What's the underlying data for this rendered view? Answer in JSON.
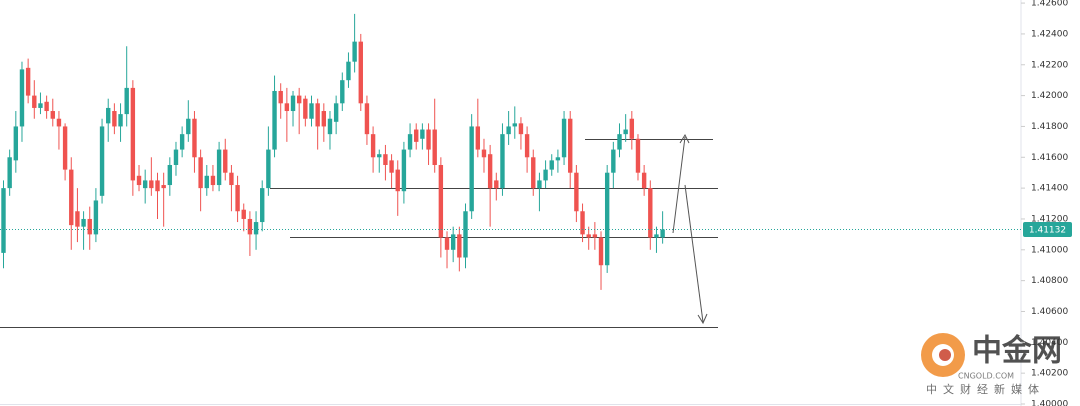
{
  "chart_data": {
    "type": "candlestick",
    "up_color": "#26a69a",
    "down_color": "#ef5350",
    "ylim": [
      1.4,
      1.4262
    ],
    "yticks": [
      {
        "value": 1.426,
        "label": "1.42600"
      },
      {
        "value": 1.424,
        "label": "1.42400"
      },
      {
        "value": 1.422,
        "label": "1.42200"
      },
      {
        "value": 1.42,
        "label": "1.42000"
      },
      {
        "value": 1.418,
        "label": "1.41800"
      },
      {
        "value": 1.416,
        "label": "1.41600"
      },
      {
        "value": 1.414,
        "label": "1.41400"
      },
      {
        "value": 1.412,
        "label": "1.41200"
      },
      {
        "value": 1.41,
        "label": "1.41000"
      },
      {
        "value": 1.408,
        "label": "1.40800"
      },
      {
        "value": 1.406,
        "label": "1.40600"
      },
      {
        "value": 1.404,
        "label": "1.40400"
      },
      {
        "value": 1.402,
        "label": "1.40200"
      },
      {
        "value": 1.4,
        "label": "1.40000"
      }
    ],
    "last_price_label": "1.41132",
    "levels": [
      1.4172,
      1.414,
      1.4108,
      1.405
    ],
    "ohlc": [
      [
        1.4098,
        1.4145,
        1.4088,
        1.414
      ],
      [
        1.414,
        1.4165,
        1.4135,
        1.416
      ],
      [
        1.4158,
        1.419,
        1.415,
        1.418
      ],
      [
        1.418,
        1.4222,
        1.417,
        1.4217
      ],
      [
        1.4218,
        1.4224,
        1.4195,
        1.42
      ],
      [
        1.42,
        1.421,
        1.4185,
        1.4192
      ],
      [
        1.4192,
        1.4202,
        1.4188,
        1.4195
      ],
      [
        1.4196,
        1.42,
        1.4185,
        1.419
      ],
      [
        1.419,
        1.4198,
        1.418,
        1.4185
      ],
      [
        1.4185,
        1.419,
        1.4165,
        1.418
      ],
      [
        1.418,
        1.4182,
        1.4145,
        1.4152
      ],
      [
        1.4152,
        1.416,
        1.41,
        1.4116
      ],
      [
        1.4125,
        1.414,
        1.4105,
        1.4115
      ],
      [
        1.4115,
        1.4125,
        1.41,
        1.412
      ],
      [
        1.412,
        1.4128,
        1.41,
        1.411
      ],
      [
        1.411,
        1.414,
        1.4105,
        1.4132
      ],
      [
        1.4135,
        1.4185,
        1.413,
        1.418
      ],
      [
        1.4182,
        1.4198,
        1.417,
        1.4192
      ],
      [
        1.419,
        1.4195,
        1.4175,
        1.418
      ],
      [
        1.418,
        1.4195,
        1.417,
        1.4188
      ],
      [
        1.4188,
        1.4232,
        1.418,
        1.4205
      ],
      [
        1.4205,
        1.421,
        1.4135,
        1.4145
      ],
      [
        1.4148,
        1.4155,
        1.4138,
        1.4142
      ],
      [
        1.414,
        1.4152,
        1.413,
        1.4145
      ],
      [
        1.4145,
        1.416,
        1.4135,
        1.414
      ],
      [
        1.4145,
        1.415,
        1.412,
        1.4138
      ],
      [
        1.4142,
        1.415,
        1.4115,
        1.414
      ],
      [
        1.4142,
        1.416,
        1.4135,
        1.4155
      ],
      [
        1.4155,
        1.417,
        1.4148,
        1.4165
      ],
      [
        1.4165,
        1.418,
        1.416,
        1.4175
      ],
      [
        1.4175,
        1.4197,
        1.417,
        1.4185
      ],
      [
        1.4185,
        1.419,
        1.415,
        1.416
      ],
      [
        1.416,
        1.4165,
        1.4125,
        1.414
      ],
      [
        1.414,
        1.4155,
        1.4135,
        1.4148
      ],
      [
        1.4148,
        1.4155,
        1.4138,
        1.4142
      ],
      [
        1.4142,
        1.417,
        1.4138,
        1.4165
      ],
      [
        1.4165,
        1.4172,
        1.4145,
        1.415
      ],
      [
        1.415,
        1.4155,
        1.4125,
        1.4142
      ],
      [
        1.4142,
        1.4148,
        1.4118,
        1.4125
      ],
      [
        1.4126,
        1.413,
        1.4112,
        1.412
      ],
      [
        1.412,
        1.4125,
        1.4096,
        1.411
      ],
      [
        1.411,
        1.4125,
        1.41,
        1.4118
      ],
      [
        1.4118,
        1.4145,
        1.4112,
        1.414
      ],
      [
        1.414,
        1.418,
        1.4135,
        1.4165
      ],
      [
        1.4165,
        1.4213,
        1.416,
        1.4203
      ],
      [
        1.4203,
        1.4208,
        1.4185,
        1.4195
      ],
      [
        1.4195,
        1.4205,
        1.417,
        1.419
      ],
      [
        1.419,
        1.4203,
        1.418,
        1.42
      ],
      [
        1.42,
        1.4205,
        1.4175,
        1.4195
      ],
      [
        1.4198,
        1.42,
        1.418,
        1.4185
      ],
      [
        1.4185,
        1.42,
        1.418,
        1.4195
      ],
      [
        1.4195,
        1.4198,
        1.4165,
        1.418
      ],
      [
        1.419,
        1.4195,
        1.417,
        1.418
      ],
      [
        1.4175,
        1.419,
        1.4165,
        1.4185
      ],
      [
        1.4183,
        1.42,
        1.4175,
        1.4195
      ],
      [
        1.4195,
        1.4215,
        1.419,
        1.421
      ],
      [
        1.421,
        1.4228,
        1.4205,
        1.4222
      ],
      [
        1.4222,
        1.4253,
        1.4215,
        1.4235
      ],
      [
        1.4235,
        1.424,
        1.419,
        1.4195
      ],
      [
        1.4195,
        1.42,
        1.4168,
        1.4175
      ],
      [
        1.4175,
        1.418,
        1.415,
        1.416
      ],
      [
        1.416,
        1.4165,
        1.415,
        1.4162
      ],
      [
        1.4162,
        1.4168,
        1.4145,
        1.4155
      ],
      [
        1.4158,
        1.4162,
        1.414,
        1.415
      ],
      [
        1.4152,
        1.4158,
        1.4122,
        1.4138
      ],
      [
        1.4138,
        1.417,
        1.413,
        1.4165
      ],
      [
        1.4165,
        1.4182,
        1.416,
        1.4175
      ],
      [
        1.4178,
        1.4182,
        1.4165,
        1.417
      ],
      [
        1.4172,
        1.4182,
        1.4165,
        1.4178
      ],
      [
        1.4178,
        1.4182,
        1.4155,
        1.4165
      ],
      [
        1.4178,
        1.4198,
        1.415,
        1.4155
      ],
      [
        1.4155,
        1.416,
        1.4095,
        1.4108
      ],
      [
        1.4108,
        1.4112,
        1.4088,
        1.41
      ],
      [
        1.41,
        1.4115,
        1.4092,
        1.411
      ],
      [
        1.411,
        1.4115,
        1.4086,
        1.4095
      ],
      [
        1.4095,
        1.413,
        1.4088,
        1.4125
      ],
      [
        1.4125,
        1.4188,
        1.412,
        1.418
      ],
      [
        1.418,
        1.4198,
        1.416,
        1.4165
      ],
      [
        1.4165,
        1.4172,
        1.415,
        1.416
      ],
      [
        1.4162,
        1.4168,
        1.4115,
        1.414
      ],
      [
        1.4145,
        1.415,
        1.4132,
        1.414
      ],
      [
        1.414,
        1.4182,
        1.4135,
        1.4175
      ],
      [
        1.4175,
        1.419,
        1.4168,
        1.418
      ],
      [
        1.418,
        1.4193,
        1.4172,
        1.4182
      ],
      [
        1.4182,
        1.4186,
        1.4165,
        1.4175
      ],
      [
        1.4175,
        1.418,
        1.415,
        1.416
      ],
      [
        1.416,
        1.4165,
        1.4135,
        1.414
      ],
      [
        1.414,
        1.415,
        1.4125,
        1.4145
      ],
      [
        1.4145,
        1.4158,
        1.414,
        1.4152
      ],
      [
        1.4152,
        1.4162,
        1.4148,
        1.4158
      ],
      [
        1.4158,
        1.4165,
        1.415,
        1.416
      ],
      [
        1.416,
        1.419,
        1.4155,
        1.4185
      ],
      [
        1.4185,
        1.419,
        1.414,
        1.415
      ],
      [
        1.415,
        1.4155,
        1.4118,
        1.4125
      ],
      [
        1.4125,
        1.413,
        1.4105,
        1.411
      ],
      [
        1.411,
        1.4115,
        1.41,
        1.4108
      ],
      [
        1.411,
        1.4118,
        1.41,
        1.4108
      ],
      [
        1.4108,
        1.4112,
        1.4074,
        1.409
      ],
      [
        1.409,
        1.4155,
        1.4085,
        1.415
      ],
      [
        1.415,
        1.417,
        1.414,
        1.4165
      ],
      [
        1.4165,
        1.4182,
        1.416,
        1.4175
      ],
      [
        1.4175,
        1.4188,
        1.417,
        1.4178
      ],
      [
        1.4185,
        1.419,
        1.4165,
        1.4172
      ],
      [
        1.4172,
        1.4175,
        1.4145,
        1.415
      ],
      [
        1.415,
        1.4155,
        1.4135,
        1.414
      ],
      [
        1.414,
        1.4145,
        1.41,
        1.4108
      ],
      [
        1.4108,
        1.4115,
        1.4098,
        1.411
      ],
      [
        1.4108,
        1.4125,
        1.4104,
        1.41132
      ]
    ]
  },
  "watermark": {
    "brand": "中金网",
    "site": "CNGOLD.COM",
    "slogan": "中文财经新媒体"
  }
}
